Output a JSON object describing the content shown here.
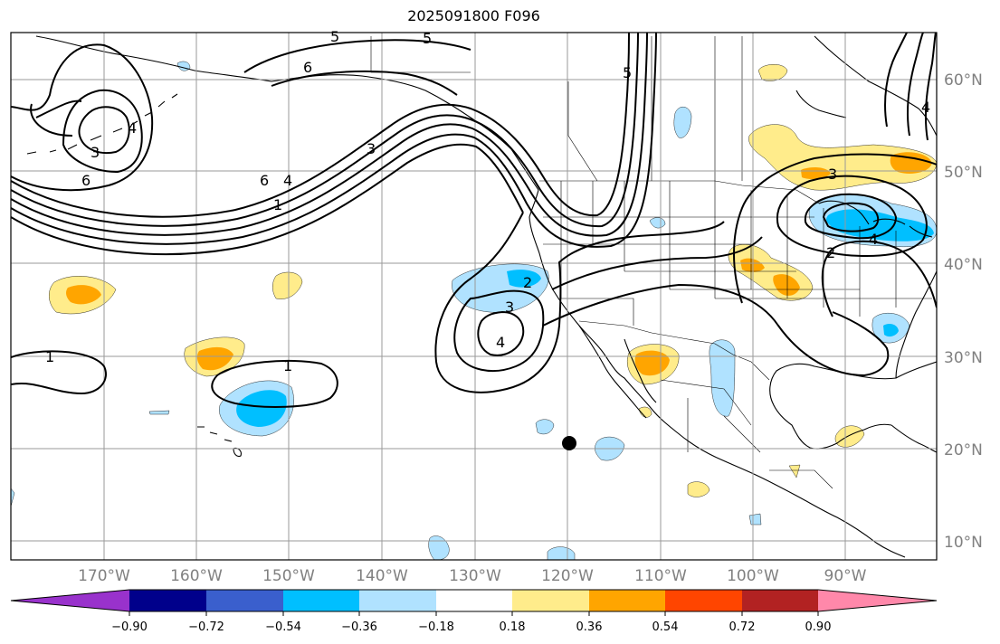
{
  "title": "2025091800 F096",
  "colors": {
    "cb_colors": [
      "#9932cc",
      "#00008b",
      "#3a5fcd",
      "#00bfff",
      "#b0e2ff",
      "#ffffff",
      "#ffec8b",
      "#ffa500",
      "#ff4500",
      "#b22222",
      "#ff88aa"
    ],
    "light_blue": "#b0e2ff",
    "blue": "#00bfff",
    "yellow": "#ffec8b",
    "orange": "#ffa500"
  },
  "lat_labels": [
    "60°N",
    "50°N",
    "40°N",
    "30°N",
    "20°N",
    "10°N"
  ],
  "lon_labels": [
    "170°W",
    "160°W",
    "150°W",
    "140°W",
    "130°W",
    "120°W",
    "110°W",
    "100°W",
    "90°W"
  ],
  "colorbar": {
    "ticks": [
      "−0.90",
      "−0.72",
      "−0.54",
      "−0.36",
      "−0.18",
      "0.18",
      "0.36",
      "0.54",
      "0.72",
      "0.90"
    ]
  },
  "contour_labels": [
    "5",
    "5",
    "6",
    "4",
    "3",
    "6",
    "1",
    "3",
    "6",
    "4",
    "2",
    "3",
    "4",
    "1",
    "1",
    "5",
    "4",
    "3",
    "4",
    "2"
  ]
}
